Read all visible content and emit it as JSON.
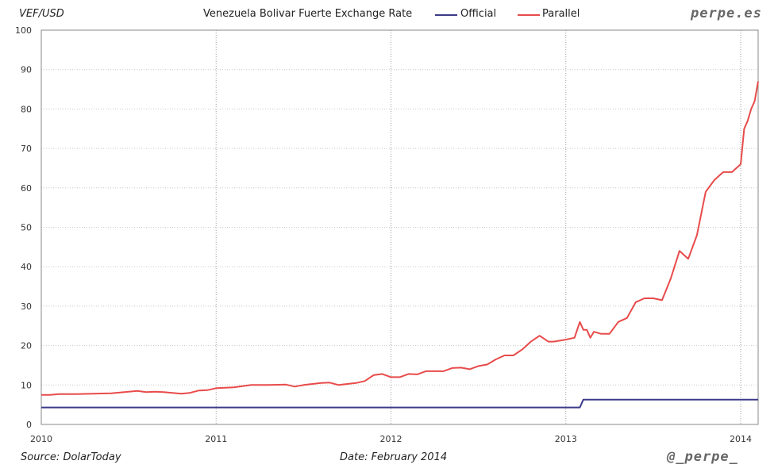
{
  "header": {
    "unit_label": "VEF/USD",
    "title": "Venezuela Bolivar Fuerte Exchange Rate",
    "brand": "perpe.es"
  },
  "legend": [
    {
      "label": "Official",
      "color": "#3b3b8a"
    },
    {
      "label": "Parallel",
      "color": "#e84b4b"
    }
  ],
  "footer": {
    "source": "Source: DolarToday",
    "date": "Date: February 2014",
    "handle": "@_perpe_"
  },
  "chart_data": {
    "type": "line",
    "title": "Venezuela Bolivar Fuerte Exchange Rate",
    "ylabel": "VEF/USD",
    "xlabel": "",
    "xlim": [
      2010.0,
      2014.1
    ],
    "ylim": [
      0,
      100
    ],
    "x_ticks": [
      2010,
      2011,
      2012,
      2013,
      2014
    ],
    "y_ticks": [
      0,
      10,
      20,
      30,
      40,
      50,
      60,
      70,
      80,
      90,
      100
    ],
    "grid": true,
    "legend_position": "top",
    "series": [
      {
        "name": "Official",
        "color": "#3b3b8a",
        "x": [
          2010.0,
          2013.08,
          2013.1,
          2014.1
        ],
        "y": [
          4.3,
          4.3,
          6.3,
          6.3
        ]
      },
      {
        "name": "Parallel",
        "color": "#e84b4b",
        "x": [
          2010.0,
          2010.05,
          2010.1,
          2010.2,
          2010.3,
          2010.4,
          2010.5,
          2010.55,
          2010.6,
          2010.65,
          2010.7,
          2010.8,
          2010.85,
          2010.9,
          2010.95,
          2011.0,
          2011.05,
          2011.1,
          2011.2,
          2011.3,
          2011.4,
          2011.45,
          2011.5,
          2011.6,
          2011.65,
          2011.7,
          2011.8,
          2011.85,
          2011.9,
          2011.95,
          2012.0,
          2012.05,
          2012.1,
          2012.15,
          2012.2,
          2012.3,
          2012.35,
          2012.4,
          2012.45,
          2012.5,
          2012.55,
          2012.6,
          2012.65,
          2012.7,
          2012.75,
          2012.8,
          2012.85,
          2012.9,
          2012.93,
          2013.0,
          2013.05,
          2013.08,
          2013.1,
          2013.12,
          2013.14,
          2013.16,
          2013.2,
          2013.25,
          2013.3,
          2013.35,
          2013.4,
          2013.45,
          2013.5,
          2013.55,
          2013.6,
          2013.65,
          2013.7,
          2013.75,
          2013.8,
          2013.85,
          2013.9,
          2013.95,
          2014.0,
          2014.02,
          2014.04,
          2014.06,
          2014.08,
          2014.1
        ],
        "y": [
          7.5,
          7.5,
          7.7,
          7.7,
          7.8,
          7.9,
          8.3,
          8.5,
          8.2,
          8.3,
          8.2,
          7.8,
          8.0,
          8.6,
          8.7,
          9.2,
          9.3,
          9.4,
          10.0,
          10.0,
          10.1,
          9.6,
          10.0,
          10.5,
          10.6,
          10.0,
          10.5,
          11.0,
          12.5,
          12.8,
          12.0,
          12.0,
          12.8,
          12.7,
          13.5,
          13.5,
          14.3,
          14.4,
          14.0,
          14.8,
          15.2,
          16.5,
          17.5,
          17.5,
          19.0,
          21.0,
          22.5,
          21.0,
          21.0,
          21.5,
          22.0,
          26.0,
          24.0,
          24.0,
          22.0,
          23.5,
          23.0,
          23.0,
          26.0,
          27.0,
          31.0,
          32.0,
          32.0,
          31.5,
          37.0,
          44.0,
          42.0,
          48.0,
          59.0,
          62.0,
          64.0,
          64.0,
          66.0,
          75.0,
          77.0,
          80.0,
          82.0,
          87.0
        ]
      }
    ]
  }
}
